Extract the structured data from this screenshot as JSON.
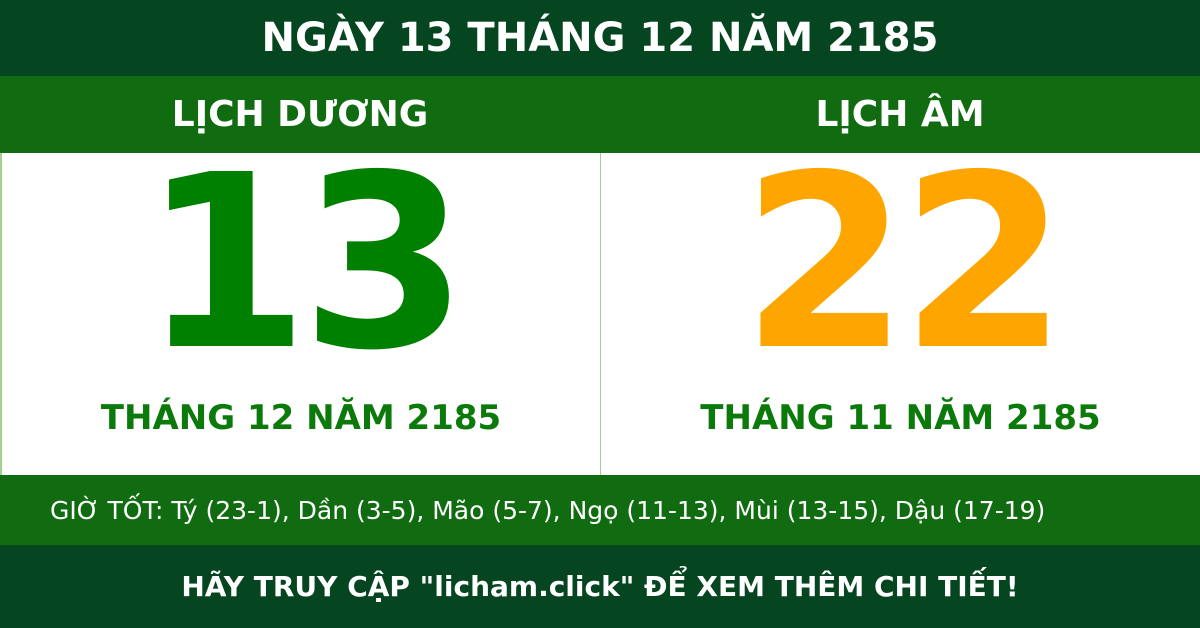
{
  "title": "NGÀY 13 THÁNG 12 NĂM 2185",
  "solar": {
    "label": "LỊCH DƯƠNG",
    "day": "13",
    "month_year": "THÁNG 12 NĂM 2185",
    "color": "#008000"
  },
  "lunar": {
    "label": "LỊCH ÂM",
    "day": "22",
    "month_year": "THÁNG 11 NĂM 2185",
    "color": "#ffa500"
  },
  "good_hours": "GIỜ TỐT: Tý (23-1), Dần (3-5), Mão (5-7), Ngọ (11-13), Mùi (13-15), Dậu (17-19)",
  "footer": "HÃY TRUY CẬP \"licham.click\" ĐỂ XEM THÊM CHI TIẾT!"
}
